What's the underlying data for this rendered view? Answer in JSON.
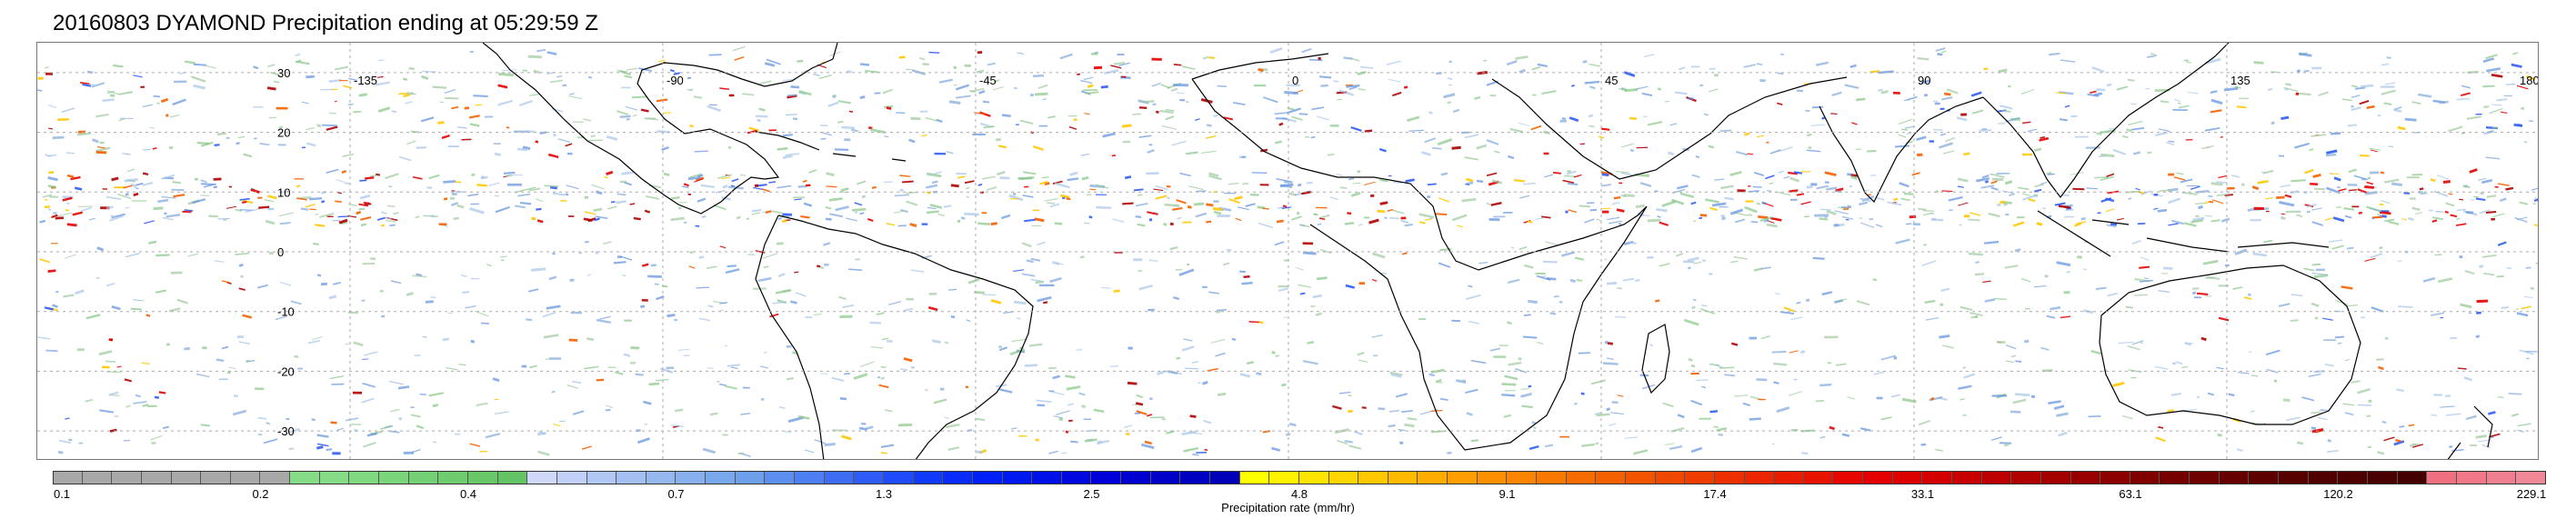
{
  "title": "20160803 DYAMOND Precipitation ending at 05:29:59 Z",
  "map": {
    "lon_labels": [
      "-135",
      "-90",
      "-45",
      "0",
      "45",
      "90",
      "135",
      "180"
    ],
    "lat_labels": [
      "30",
      "20",
      "10",
      "0",
      "-10",
      "-20",
      "-30"
    ],
    "lon_range": [
      -180,
      180
    ],
    "lat_range": [
      -35,
      35
    ],
    "grid": true,
    "gridline_color": "#aaaaaa"
  },
  "colorbar": {
    "label": "Precipitation rate (mm/hr)",
    "tick_labels": [
      "0.1",
      "0.2",
      "0.4",
      "0.7",
      "1.3",
      "2.5",
      "4.8",
      "9.1",
      "17.4",
      "33.1",
      "63.1",
      "120.2",
      "229.1"
    ],
    "colors": [
      "#a8a8a8",
      "#a8a8a8",
      "#a8a8a8",
      "#a8a8a8",
      "#a8a8a8",
      "#a8a8a8",
      "#a8a8a8",
      "#a8a8a8",
      "#86dc86",
      "#86dc86",
      "#80d880",
      "#7ad47a",
      "#74d074",
      "#6ecc6e",
      "#68c868",
      "#62c462",
      "#cfd8f8",
      "#c0d0f6",
      "#b2c8f4",
      "#a4c0f2",
      "#96b8f0",
      "#88b0ee",
      "#7aa8ec",
      "#6ca0ea",
      "#5c8ff0",
      "#4d7ef2",
      "#3e6df4",
      "#2f5cf6",
      "#204bf8",
      "#123af9",
      "#0a2cfa",
      "#0020f8",
      "#0018f0",
      "#0010e8",
      "#0008e0",
      "#0000d8",
      "#0000d0",
      "#0000c8",
      "#0000c0",
      "#0000b8",
      "#ffff00",
      "#fff200",
      "#ffe400",
      "#ffd600",
      "#ffc800",
      "#ffba00",
      "#ffac00",
      "#ff9e00",
      "#fd9000",
      "#fb8400",
      "#f97800",
      "#f76c00",
      "#f56000",
      "#f35400",
      "#f14800",
      "#ef3c00",
      "#ee3000",
      "#ec2600",
      "#ea1c00",
      "#e81200",
      "#e60800",
      "#e40000",
      "#dc0000",
      "#d40000",
      "#c80000",
      "#bc0000",
      "#b00000",
      "#a40000",
      "#980000",
      "#8c0000",
      "#800000",
      "#760000",
      "#6e0000",
      "#660000",
      "#5e0000",
      "#560000",
      "#500000",
      "#4c0000",
      "#480000",
      "#440000",
      "#f07080",
      "#f07888",
      "#f08090",
      "#f08898"
    ],
    "n_cells": 84
  }
}
